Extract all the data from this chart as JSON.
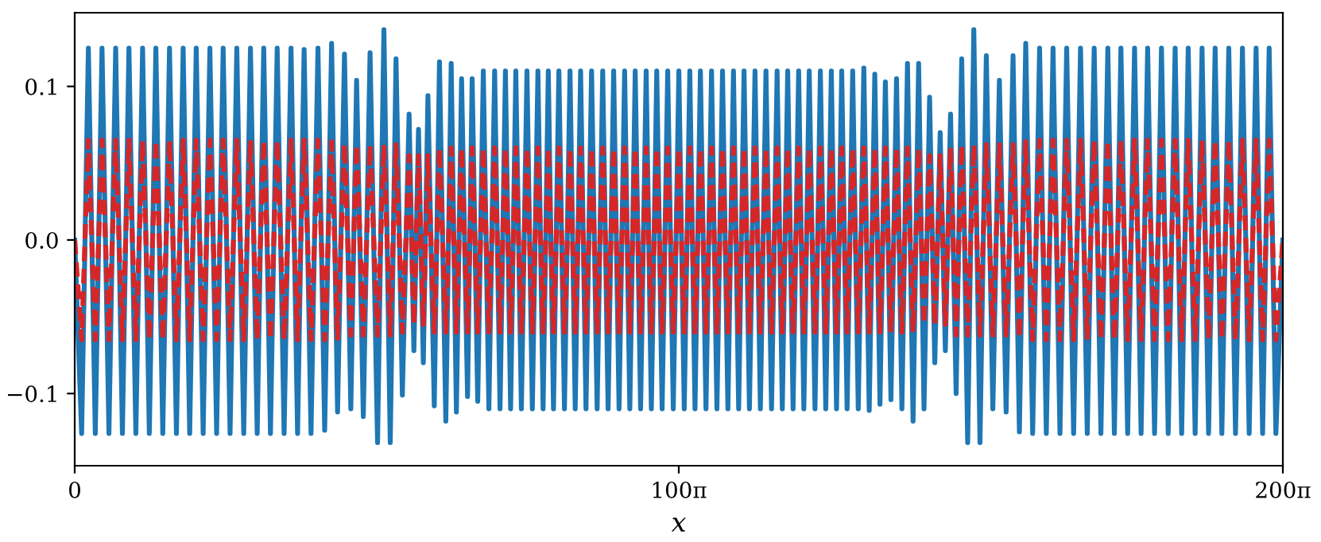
{
  "chart_data": {
    "type": "line",
    "xlabel": "x",
    "x": [
      0,
      3.6,
      7.1,
      10.7,
      14.2,
      17.8,
      21.3,
      24.8,
      28.2,
      31.8,
      35.3,
      38.8,
      42.2,
      45.8,
      49.3,
      52.9,
      56.4,
      59.8,
      63.2,
      66.8,
      70.3,
      73.8,
      77.2,
      80.8,
      84.3,
      87.9,
      91.4,
      94.9,
      98.3,
      101.8,
      105.3,
      108.9,
      112.5,
      115.9,
      119.3,
      122.9,
      126.5,
      130.0,
      133.6,
      136.7,
      140.3,
      143.6,
      146.6,
      150.1,
      153.6,
      157.5,
      160.8,
      164.1,
      167.1,
      170.4,
      173.9,
      176.4,
      178.8,
      181.3,
      183.7,
      187.0,
      189.7,
      193.0,
      195.8,
      198.5,
      201.2,
      204.3,
      206.7,
      209.6,
      212.5,
      215.4,
      218.4,
      221.2,
      224.0,
      226.7,
      229.4,
      232.3,
      235.2,
      238.0,
      240.9,
      243.6,
      246.3,
      249.0,
      251.8,
      254.7,
      257.6,
      260.3,
      263.1,
      265.9,
      268.8,
      271.7,
      274.6,
      277.4,
      280.3,
      283.1,
      286.0,
      288.7,
      291.5,
      294.3,
      297.2,
      299.9,
      302.7,
      305.5,
      308.4,
      311.3,
      314.2,
      317.0,
      319.9,
      322.6,
      325.4,
      328.3,
      331.2,
      334.0,
      336.9,
      339.7,
      342.6,
      345.3,
      348.1,
      350.9,
      353.8,
      356.6,
      359.5,
      362.4,
      365.3,
      368.0,
      370.8,
      373.6,
      376.5,
      379.2,
      382.0,
      385.0,
      387.8,
      390.6,
      393.5,
      396.2,
      398.9,
      401.7,
      404.6,
      407.5,
      410.4,
      413.2,
      416.1,
      418.8,
      421.6,
      424.5,
      427.4,
      430.2,
      433.1,
      436.0,
      438.9,
      441.7,
      444.6,
      447.3,
      450.1,
      452.8,
      455.5,
      458.4,
      461.3,
      464.4,
      467.6,
      470.8,
      474.1,
      477.5,
      480.9,
      484.4,
      488.0,
      491.3,
      494.6,
      498.2,
      501.8,
      505.3,
      508.8,
      512.4,
      515.9,
      519.5,
      523.1,
      526.6,
      530.2,
      533.7,
      537.3,
      540.7,
      544.1,
      547.6,
      551.2,
      554.6,
      558.0,
      561.6,
      565.2,
      568.7,
      572.3,
      575.7,
      579.1,
      582.7,
      586.3,
      589.7,
      593.1,
      596.6,
      600.2,
      603.7,
      607.3,
      610.8,
      614.4,
      617.8,
      621.2,
      624.7,
      628.3
    ],
    "series": [
      {
        "color": "#1f77b4",
        "line_style": "solid",
        "values": [
          0.0,
          -0.126,
          0.125,
          -0.126,
          0.125,
          -0.126,
          0.125,
          -0.126,
          0.125,
          -0.126,
          0.125,
          -0.126,
          0.125,
          -0.126,
          0.125,
          -0.126,
          0.125,
          -0.126,
          0.125,
          -0.126,
          0.125,
          -0.126,
          0.125,
          -0.126,
          0.125,
          -0.126,
          0.125,
          -0.126,
          0.125,
          -0.126,
          0.125,
          -0.126,
          0.125,
          -0.126,
          0.124,
          -0.126,
          0.125,
          -0.124,
          0.128,
          -0.112,
          0.121,
          -0.11,
          0.104,
          -0.115,
          0.122,
          -0.132,
          0.137,
          -0.132,
          0.118,
          -0.101,
          0.082,
          -0.072,
          0.072,
          -0.08,
          0.094,
          -0.108,
          0.116,
          -0.118,
          0.115,
          -0.112,
          0.105,
          -0.102,
          0.105,
          -0.105,
          0.11,
          -0.11,
          0.11,
          -0.11,
          0.11,
          -0.11,
          0.11,
          -0.11,
          0.11,
          -0.11,
          0.11,
          -0.11,
          0.11,
          -0.11,
          0.11,
          -0.11,
          0.11,
          -0.11,
          0.11,
          -0.11,
          0.11,
          -0.11,
          0.11,
          -0.11,
          0.11,
          -0.11,
          0.11,
          -0.11,
          0.11,
          -0.11,
          0.11,
          -0.11,
          0.11,
          -0.11,
          0.11,
          -0.11,
          0.11,
          -0.11,
          0.11,
          -0.11,
          0.11,
          -0.11,
          0.11,
          -0.11,
          0.11,
          -0.11,
          0.11,
          -0.11,
          0.11,
          -0.11,
          0.11,
          -0.11,
          0.11,
          -0.11,
          0.11,
          -0.11,
          0.11,
          -0.11,
          0.11,
          -0.11,
          0.11,
          -0.11,
          0.11,
          -0.11,
          0.11,
          -0.11,
          0.11,
          -0.11,
          0.11,
          -0.11,
          0.112,
          -0.111,
          0.108,
          -0.107,
          0.103,
          -0.104,
          0.105,
          -0.11,
          0.115,
          -0.118,
          0.115,
          -0.11,
          0.093,
          -0.08,
          0.07,
          -0.072,
          0.082,
          -0.1,
          0.118,
          -0.132,
          0.137,
          -0.132,
          0.12,
          -0.11,
          0.104,
          -0.112,
          0.12,
          -0.125,
          0.128,
          -0.126,
          0.125,
          -0.126,
          0.125,
          -0.126,
          0.125,
          -0.126,
          0.125,
          -0.126,
          0.125,
          -0.126,
          0.125,
          -0.126,
          0.125,
          -0.126,
          0.125,
          -0.126,
          0.125,
          -0.126,
          0.125,
          -0.126,
          0.125,
          -0.126,
          0.125,
          -0.126,
          0.125,
          -0.126,
          0.125,
          -0.126,
          0.125,
          -0.126,
          0.125,
          -0.126,
          0.125,
          -0.126,
          0.125,
          -0.126,
          0.0
        ]
      },
      {
        "color": "#d62728",
        "line_style": "dashed",
        "values": [
          0.0,
          -0.065,
          0.065,
          -0.065,
          0.065,
          -0.065,
          0.065,
          -0.065,
          0.065,
          -0.065,
          0.065,
          -0.065,
          0.065,
          -0.065,
          0.065,
          -0.065,
          0.065,
          -0.065,
          0.065,
          -0.065,
          0.065,
          -0.065,
          0.065,
          -0.065,
          0.065,
          -0.065,
          0.065,
          -0.065,
          0.065,
          -0.065,
          0.065,
          -0.065,
          0.065,
          -0.065,
          0.065,
          -0.065,
          0.065,
          -0.065,
          0.064,
          -0.064,
          0.063,
          -0.062,
          0.062,
          -0.062,
          0.062,
          -0.062,
          0.062,
          -0.062,
          0.062,
          -0.06,
          0.055,
          -0.055,
          0.055,
          -0.055,
          0.055,
          -0.06,
          0.06,
          -0.06,
          0.06,
          -0.06,
          0.06,
          -0.06,
          0.06,
          -0.06,
          0.06,
          -0.06,
          0.06,
          -0.06,
          0.06,
          -0.06,
          0.06,
          -0.06,
          0.06,
          -0.06,
          0.06,
          -0.06,
          0.06,
          -0.06,
          0.06,
          -0.06,
          0.06,
          -0.06,
          0.06,
          -0.06,
          0.06,
          -0.06,
          0.06,
          -0.06,
          0.06,
          -0.06,
          0.06,
          -0.06,
          0.06,
          -0.06,
          0.06,
          -0.06,
          0.06,
          -0.06,
          0.06,
          -0.06,
          0.06,
          -0.06,
          0.06,
          -0.06,
          0.06,
          -0.06,
          0.06,
          -0.06,
          0.06,
          -0.06,
          0.06,
          -0.06,
          0.06,
          -0.06,
          0.06,
          -0.06,
          0.06,
          -0.06,
          0.06,
          -0.06,
          0.06,
          -0.06,
          0.06,
          -0.06,
          0.06,
          -0.06,
          0.06,
          -0.06,
          0.06,
          -0.06,
          0.06,
          -0.06,
          0.06,
          -0.06,
          0.06,
          -0.06,
          0.06,
          -0.06,
          0.06,
          -0.06,
          0.06,
          -0.06,
          0.06,
          -0.06,
          0.06,
          -0.055,
          0.055,
          -0.055,
          0.055,
          -0.055,
          0.06,
          -0.062,
          0.062,
          -0.062,
          0.062,
          -0.062,
          0.062,
          -0.062,
          0.062,
          -0.062,
          0.062,
          -0.064,
          0.064,
          -0.065,
          0.065,
          -0.065,
          0.065,
          -0.065,
          0.065,
          -0.065,
          0.065,
          -0.065,
          0.065,
          -0.065,
          0.065,
          -0.065,
          0.065,
          -0.065,
          0.065,
          -0.065,
          0.065,
          -0.065,
          0.065,
          -0.065,
          0.065,
          -0.065,
          0.065,
          -0.065,
          0.065,
          -0.065,
          0.065,
          -0.065,
          0.065,
          -0.065,
          0.065,
          -0.065,
          0.065,
          -0.065,
          0.065,
          -0.065,
          0.0
        ]
      }
    ],
    "xlim": [
      0,
      628.319
    ],
    "xticks": [
      0,
      {
        "value": 314.159,
        "label": "100π"
      },
      {
        "value": 628.319,
        "label": "200π"
      }
    ],
    "ylim": [
      -0.147,
      0.148
    ],
    "yticks": [
      {
        "value": -0.1,
        "label": "−0.1"
      },
      {
        "value": 0.0,
        "label": "0.0"
      },
      {
        "value": 0.1,
        "label": "0.1"
      }
    ],
    "grid": false
  }
}
